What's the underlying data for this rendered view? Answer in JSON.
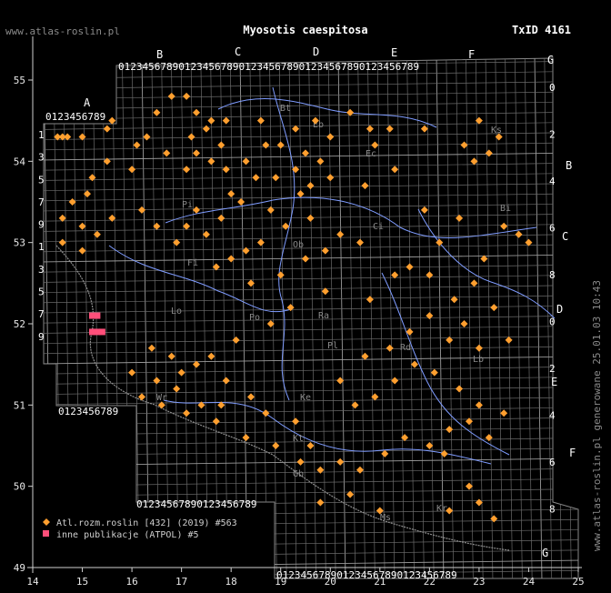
{
  "header": {
    "site": "www.atlas-roslin.pl",
    "title": "Myosotis caespitosa",
    "taxon_id": "TxID 4161"
  },
  "side_note": "www.atlas-roslin.pl generowane 25.01.03 10:43",
  "axes": {
    "x_ticks": [
      "14",
      "15",
      "16",
      "17",
      "18",
      "19",
      "20",
      "21",
      "22",
      "23",
      "24",
      "25"
    ],
    "y_ticks": [
      "49",
      "50",
      "51",
      "52",
      "53",
      "54",
      "55"
    ]
  },
  "zone_letters": {
    "top": [
      "A",
      "B",
      "C",
      "D",
      "E",
      "F",
      "G"
    ],
    "right": [
      "B",
      "C",
      "D",
      "E",
      "F",
      "G"
    ]
  },
  "digit_strip": "0123456789",
  "region_labels": [
    "Eb",
    "Ec",
    "Bi",
    "Ci",
    "Ob",
    "Pi",
    "Fi",
    "Po",
    "Ra",
    "Lo",
    "Pl",
    "Rd",
    "Wr",
    "Lb",
    "Kt",
    "Ms",
    "Kr",
    "Ke",
    "Ks",
    "Bt",
    "Gb"
  ],
  "legend": [
    {
      "label": "Atl.rozm.roslin [432] (2019) #563",
      "color": "#ff9f2f",
      "shape": "diamond"
    },
    {
      "label": "inne publikacje (ATPOL) #5",
      "color": "#ff4f7a",
      "shape": "square"
    }
  ],
  "colors": {
    "primary_marker": "#ff9f2f",
    "secondary_marker": "#ff4f7a",
    "river": "#7f9cff"
  },
  "points": {
    "atlas": [
      [
        15.0,
        54.3
      ],
      [
        14.7,
        54.3
      ],
      [
        14.6,
        54.3
      ],
      [
        14.5,
        54.3
      ],
      [
        15.6,
        54.5
      ],
      [
        15.5,
        54.4
      ],
      [
        16.1,
        54.2
      ],
      [
        16.3,
        54.3
      ],
      [
        16.5,
        54.6
      ],
      [
        16.8,
        54.8
      ],
      [
        17.1,
        54.8
      ],
      [
        17.3,
        54.6
      ],
      [
        17.6,
        54.5
      ],
      [
        17.9,
        54.5
      ],
      [
        17.8,
        54.2
      ],
      [
        17.5,
        54.4
      ],
      [
        17.3,
        54.1
      ],
      [
        17.1,
        53.9
      ],
      [
        17.6,
        54.0
      ],
      [
        17.2,
        54.3
      ],
      [
        16.7,
        54.1
      ],
      [
        16.0,
        53.9
      ],
      [
        15.5,
        54.0
      ],
      [
        15.2,
        53.8
      ],
      [
        15.1,
        53.6
      ],
      [
        15.6,
        53.3
      ],
      [
        15.3,
        53.1
      ],
      [
        15.0,
        53.2
      ],
      [
        14.8,
        53.5
      ],
      [
        14.6,
        53.3
      ],
      [
        14.6,
        53.0
      ],
      [
        15.0,
        52.9
      ],
      [
        16.2,
        53.4
      ],
      [
        16.5,
        53.2
      ],
      [
        17.1,
        53.2
      ],
      [
        17.3,
        53.4
      ],
      [
        16.9,
        53.0
      ],
      [
        17.5,
        53.1
      ],
      [
        17.8,
        53.3
      ],
      [
        18.0,
        53.6
      ],
      [
        17.9,
        53.9
      ],
      [
        18.3,
        54.0
      ],
      [
        18.7,
        54.2
      ],
      [
        18.6,
        54.5
      ],
      [
        19.0,
        54.2
      ],
      [
        19.3,
        54.4
      ],
      [
        19.5,
        54.1
      ],
      [
        19.8,
        54.0
      ],
      [
        20.0,
        53.8
      ],
      [
        19.6,
        53.7
      ],
      [
        19.3,
        53.9
      ],
      [
        18.5,
        53.8
      ],
      [
        18.2,
        53.5
      ],
      [
        18.8,
        53.4
      ],
      [
        19.1,
        53.2
      ],
      [
        18.6,
        53.0
      ],
      [
        18.3,
        52.9
      ],
      [
        18.0,
        52.8
      ],
      [
        17.7,
        52.7
      ],
      [
        18.4,
        52.5
      ],
      [
        19.0,
        52.6
      ],
      [
        19.5,
        52.8
      ],
      [
        19.9,
        52.9
      ],
      [
        19.6,
        53.3
      ],
      [
        20.2,
        53.1
      ],
      [
        20.6,
        53.0
      ],
      [
        19.9,
        52.4
      ],
      [
        19.2,
        52.2
      ],
      [
        18.8,
        52.0
      ],
      [
        18.1,
        51.8
      ],
      [
        17.6,
        51.6
      ],
      [
        17.0,
        51.4
      ],
      [
        16.5,
        51.3
      ],
      [
        16.2,
        51.1
      ],
      [
        16.0,
        51.4
      ],
      [
        16.4,
        51.7
      ],
      [
        16.8,
        51.6
      ],
      [
        17.3,
        51.5
      ],
      [
        17.9,
        51.3
      ],
      [
        17.4,
        51.0
      ],
      [
        16.9,
        51.2
      ],
      [
        16.6,
        51.0
      ],
      [
        17.1,
        50.9
      ],
      [
        17.7,
        50.8
      ],
      [
        18.3,
        50.6
      ],
      [
        18.9,
        50.5
      ],
      [
        19.4,
        50.3
      ],
      [
        19.8,
        50.2
      ],
      [
        20.2,
        50.3
      ],
      [
        20.6,
        50.2
      ],
      [
        21.1,
        50.4
      ],
      [
        21.5,
        50.6
      ],
      [
        22.0,
        50.5
      ],
      [
        22.4,
        50.7
      ],
      [
        22.8,
        50.8
      ],
      [
        23.2,
        50.6
      ],
      [
        23.5,
        50.9
      ],
      [
        23.0,
        51.0
      ],
      [
        22.6,
        51.2
      ],
      [
        22.1,
        51.4
      ],
      [
        21.7,
        51.5
      ],
      [
        21.3,
        51.3
      ],
      [
        20.9,
        51.1
      ],
      [
        20.5,
        51.0
      ],
      [
        20.2,
        51.3
      ],
      [
        20.7,
        51.6
      ],
      [
        21.2,
        51.7
      ],
      [
        21.6,
        51.9
      ],
      [
        22.0,
        52.1
      ],
      [
        22.5,
        52.3
      ],
      [
        22.9,
        52.5
      ],
      [
        23.3,
        52.2
      ],
      [
        23.6,
        51.8
      ],
      [
        23.0,
        51.7
      ],
      [
        22.4,
        51.8
      ],
      [
        22.7,
        52.0
      ],
      [
        23.1,
        52.8
      ],
      [
        23.5,
        53.2
      ],
      [
        23.8,
        53.1
      ],
      [
        24.0,
        53.0
      ],
      [
        22.9,
        54.0
      ],
      [
        23.2,
        54.1
      ],
      [
        23.4,
        54.3
      ],
      [
        23.0,
        54.5
      ],
      [
        22.7,
        54.2
      ],
      [
        21.9,
        54.4
      ],
      [
        21.2,
        54.4
      ],
      [
        20.8,
        54.4
      ],
      [
        20.4,
        54.6
      ],
      [
        20.9,
        54.2
      ],
      [
        21.3,
        53.9
      ],
      [
        20.7,
        53.7
      ],
      [
        20.0,
        54.3
      ],
      [
        19.7,
        54.5
      ],
      [
        19.4,
        53.6
      ],
      [
        18.9,
        53.8
      ],
      [
        21.6,
        52.7
      ],
      [
        21.3,
        52.6
      ],
      [
        20.8,
        52.3
      ],
      [
        22.0,
        52.6
      ],
      [
        22.2,
        53.0
      ],
      [
        21.9,
        53.4
      ],
      [
        22.6,
        53.3
      ],
      [
        22.3,
        50.4
      ],
      [
        22.8,
        50.0
      ],
      [
        23.0,
        49.8
      ],
      [
        23.3,
        49.6
      ],
      [
        22.4,
        49.7
      ],
      [
        19.8,
        49.8
      ],
      [
        20.4,
        49.9
      ],
      [
        21.0,
        49.7
      ],
      [
        19.6,
        50.5
      ],
      [
        19.3,
        50.8
      ],
      [
        18.7,
        50.9
      ],
      [
        18.4,
        51.1
      ],
      [
        17.8,
        51.0
      ]
    ],
    "atpol": [
      [
        15.2,
        52.1
      ],
      [
        15.3,
        52.1
      ],
      [
        15.2,
        51.9
      ],
      [
        15.4,
        51.9
      ],
      [
        15.3,
        51.9
      ]
    ]
  }
}
